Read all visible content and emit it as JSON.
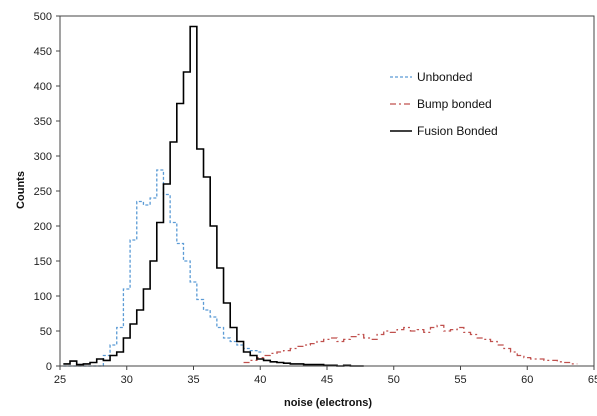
{
  "chart_data": {
    "type": "line",
    "title": "",
    "xlabel": "noise (electrons)",
    "ylabel": "Counts",
    "xlim": [
      25,
      65
    ],
    "ylim": [
      0,
      500
    ],
    "xticks": [
      25,
      30,
      35,
      40,
      45,
      50,
      55,
      60,
      65
    ],
    "yticks": [
      0,
      50,
      100,
      150,
      200,
      250,
      300,
      350,
      400,
      450,
      500
    ],
    "grid": false,
    "legend_position": "right",
    "bin_width": 0.5,
    "series": [
      {
        "name": "Unbonded",
        "color": "#5b9bd5",
        "style": "dashed",
        "x": [
          25.5,
          26,
          26.5,
          27,
          27.5,
          28,
          28.5,
          29,
          29.5,
          30,
          30.5,
          31,
          31.5,
          32,
          32.5,
          33,
          33.5,
          34,
          34.5,
          35,
          35.5,
          36,
          36.5,
          37,
          37.5,
          38,
          38.5,
          39,
          39.5,
          40
        ],
        "y": [
          0,
          0,
          0,
          0,
          0,
          0,
          15,
          30,
          55,
          110,
          180,
          235,
          230,
          240,
          280,
          245,
          205,
          175,
          150,
          120,
          95,
          80,
          70,
          55,
          40,
          35,
          30,
          25,
          22,
          20
        ]
      },
      {
        "name": "Bump bonded",
        "color": "#c0504d",
        "style": "dashdot",
        "x": [
          39,
          39.5,
          40,
          40.5,
          41,
          41.5,
          42,
          42.5,
          43,
          43.5,
          44,
          44.5,
          45,
          45.5,
          46,
          46.5,
          47,
          47.5,
          48,
          48.5,
          49,
          49.5,
          50,
          50.5,
          51,
          51.5,
          52,
          52.5,
          53,
          53.5,
          54,
          54.5,
          55,
          55.5,
          56,
          56.5,
          57,
          57.5,
          58,
          58.5,
          59,
          59.5,
          60,
          60.5,
          61,
          61.5,
          62,
          62.5,
          63,
          63.5
        ],
        "y": [
          5,
          8,
          12,
          15,
          18,
          20,
          22,
          25,
          28,
          30,
          32,
          35,
          38,
          40,
          35,
          38,
          42,
          45,
          40,
          38,
          45,
          50,
          48,
          52,
          55,
          50,
          52,
          48,
          55,
          58,
          50,
          52,
          55,
          48,
          45,
          40,
          38,
          35,
          30,
          25,
          20,
          15,
          12,
          10,
          10,
          8,
          8,
          6,
          5,
          3
        ]
      },
      {
        "name": "Fusion Bonded",
        "color": "#000000",
        "style": "solid",
        "x": [
          25.5,
          26,
          26.5,
          27,
          27.5,
          28,
          28.5,
          29,
          29.5,
          30,
          30.5,
          31,
          31.5,
          32,
          32.5,
          33,
          33.5,
          34,
          34.5,
          35,
          35.5,
          36,
          36.5,
          37,
          37.5,
          38,
          38.5,
          39,
          39.5,
          40,
          40.5,
          41,
          41.5,
          42,
          42.5,
          43,
          43.5,
          44,
          44.5,
          45,
          45.5,
          46,
          46.5,
          47,
          47.5
        ],
        "y": [
          3,
          7,
          2,
          3,
          5,
          10,
          8,
          15,
          20,
          40,
          60,
          80,
          110,
          150,
          205,
          260,
          320,
          375,
          420,
          485,
          310,
          270,
          200,
          140,
          90,
          55,
          35,
          20,
          15,
          10,
          8,
          6,
          5,
          4,
          3,
          3,
          2,
          2,
          2,
          1,
          1,
          0,
          1,
          0,
          0
        ]
      }
    ]
  }
}
